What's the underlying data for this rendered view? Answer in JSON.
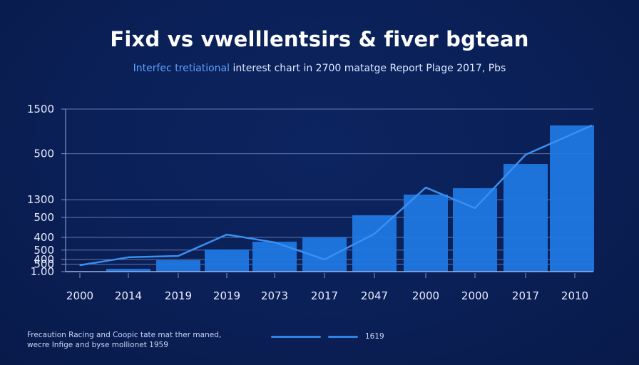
{
  "chart_data": {
    "type": "bar",
    "title": "Fixd vs vwelllentsirs & fiver bgtean",
    "subtitle_parts": [
      {
        "text": "Interfec tretiational",
        "highlight": true
      },
      {
        "text": " interest chart in 2700 matatge Report Plage 2017, Pbs",
        "highlight": false
      }
    ],
    "xlabel": "",
    "ylabel": "",
    "ylim": [
      0,
      1500
    ],
    "grid": true,
    "y_tick_labels": [
      "1500",
      "500",
      "1300",
      "500",
      "400",
      "500",
      "400",
      "500",
      "1.00"
    ],
    "y_tick_values": [
      1500,
      1088,
      664,
      500,
      316,
      199,
      112,
      68,
      0
    ],
    "categories": [
      "2000",
      "2014",
      "2019",
      "2019",
      "2073",
      "2017",
      "2047",
      "2000",
      "2000",
      "2017",
      "2010"
    ],
    "series": [
      {
        "name": "bars",
        "kind": "bar",
        "color": "#1f78e0",
        "values": [
          null,
          26,
          105,
          204,
          276,
          316,
          520,
          711,
          770,
          993,
          1349
        ]
      },
      {
        "name": "1619",
        "kind": "line",
        "color": "#3a8ff0",
        "values": [
          59,
          132,
          145,
          342,
          270,
          112,
          349,
          776,
          586,
          1079,
          1349
        ]
      }
    ],
    "legend": {
      "placement": "bottom-center",
      "label": "1619"
    },
    "footnote": [
      "Frecaution Racing and Coopic tate mat ther maned,",
      "wecre Infige and byse mollionet 1959"
    ]
  },
  "colors": {
    "background": "#0a1f55",
    "bar": "#1f78e0",
    "line": "#3a8ff0",
    "grid": "#7f95c9",
    "text": "#ffffff",
    "subtitle_highlight": "#5aa2ff"
  }
}
